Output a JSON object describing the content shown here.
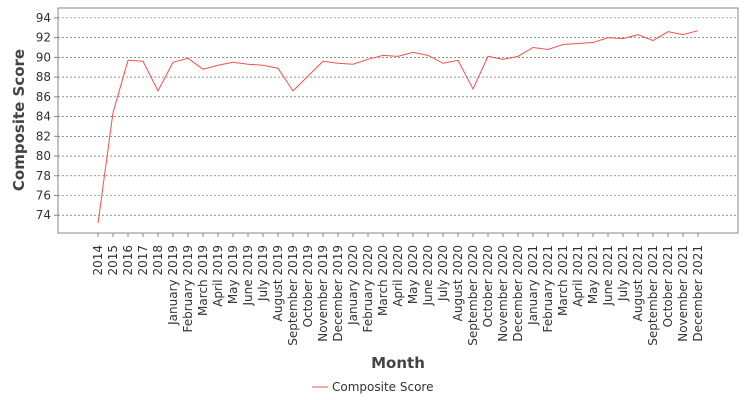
{
  "chart_data": {
    "type": "line",
    "x_label": "Month",
    "y_label": "Composite Score",
    "categories": [
      "2014",
      "2015",
      "2016",
      "2017",
      "2018",
      "January 2019",
      "February 2019",
      "March 2019",
      "April 2019",
      "May 2019",
      "June 2019",
      "July 2019",
      "August 2019",
      "September 2019",
      "October 2019",
      "November 2019",
      "December 2019",
      "January 2020",
      "February 2020",
      "March 2020",
      "April 2020",
      "May 2020",
      "June 2020",
      "July 2020",
      "August 2020",
      "September 2020",
      "October 2020",
      "November 2020",
      "December 2020",
      "January 2021",
      "February 2021",
      "March 2021",
      "April 2021",
      "May 2021",
      "June 2021",
      "July 2021",
      "August 2021",
      "September 2021",
      "October 2021",
      "November 2021",
      "December 2021"
    ],
    "series": [
      {
        "name": "Composite Score",
        "color": "#f05050",
        "values": [
          73.2,
          84.4,
          89.7,
          89.6,
          86.6,
          89.5,
          89.9,
          88.8,
          89.2,
          89.5,
          89.3,
          89.2,
          88.9,
          86.6,
          88.1,
          89.6,
          89.4,
          89.3,
          89.8,
          90.2,
          90.1,
          90.5,
          90.2,
          89.4,
          89.7,
          86.8,
          90.1,
          89.8,
          90.1,
          91.0,
          90.8,
          91.3,
          91.4,
          91.5,
          92.0,
          91.9,
          92.3,
          91.7,
          92.6,
          92.3,
          92.7
        ]
      }
    ],
    "ylim": [
      72.2,
      95
    ],
    "yticks": [
      74,
      76,
      78,
      80,
      82,
      84,
      86,
      88,
      90,
      92,
      94
    ],
    "grid": true,
    "legend": "bottom"
  }
}
